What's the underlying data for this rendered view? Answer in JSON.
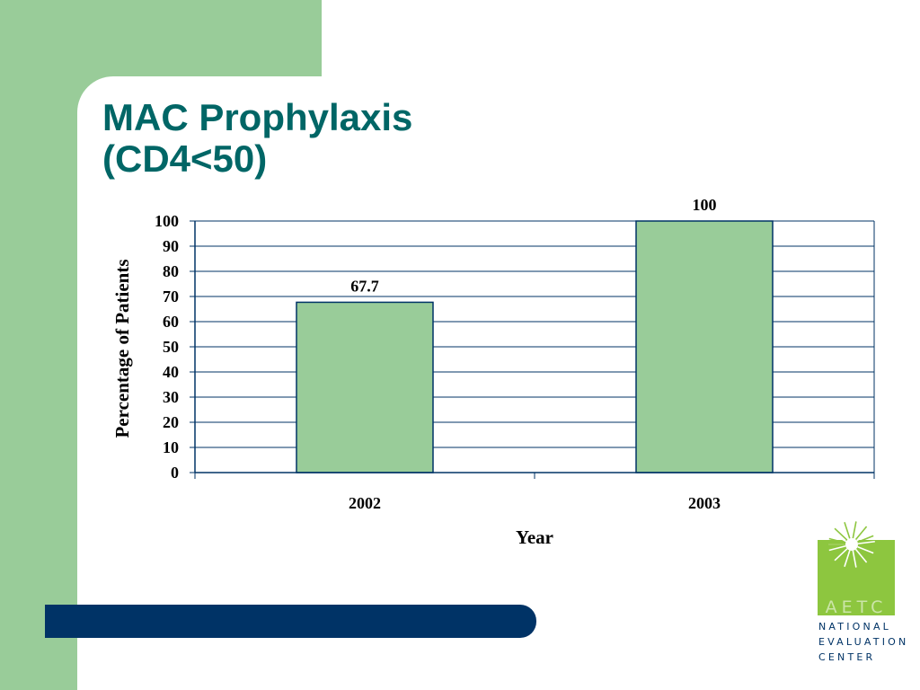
{
  "slide": {
    "title_line1": "MAC Prophylaxis",
    "title_line2": "(CD4<50)"
  },
  "logo": {
    "acronym": "AETC",
    "line1": "NATIONAL",
    "line2": "EVALUATION",
    "line3": "CENTER"
  },
  "colors": {
    "background_green": "#99cc99",
    "title": "#006666",
    "bar_fill": "#99cc99",
    "bar_stroke": "#003366",
    "accent_bar": "#003366",
    "logo_green": "#8dc63f"
  },
  "chart_data": {
    "type": "bar",
    "categories": [
      "2002",
      "2003"
    ],
    "values": [
      67.7,
      100
    ],
    "data_labels": [
      "67.7",
      "100"
    ],
    "xlabel": "Year",
    "ylabel": "Percentage of Patients",
    "ylim": [
      0,
      100
    ],
    "yticks": [
      "0",
      "10",
      "20",
      "30",
      "40",
      "50",
      "60",
      "70",
      "80",
      "90",
      "100"
    ],
    "grid": true,
    "legend": "none"
  }
}
